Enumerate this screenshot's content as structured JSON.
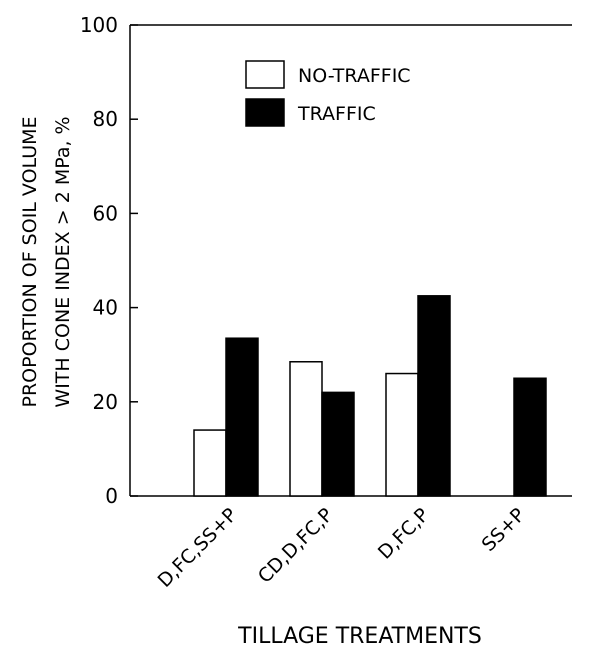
{
  "chart_data": {
    "type": "bar",
    "categories": [
      "D,FC,SS+P",
      "CD,D,FC,P",
      "D,FC,P",
      "SS+P"
    ],
    "series": [
      {
        "name": "NO-TRAFFIC",
        "values": [
          14,
          28.5,
          26,
          null
        ],
        "color": "#ffffff"
      },
      {
        "name": "TRAFFIC",
        "values": [
          33.5,
          22,
          42.5,
          25
        ],
        "color": "#000000"
      }
    ],
    "ylabel_lines": [
      "PROPORTION OF SOIL VOLUME",
      "WITH CONE INDEX > 2 MPa, %"
    ],
    "xlabel": "TILLAGE TREATMENTS",
    "ylim": [
      0,
      100
    ],
    "yticks": [
      "0",
      "20",
      "40",
      "60",
      "80",
      "100"
    ],
    "legend_position": "top-center",
    "grid": false
  }
}
